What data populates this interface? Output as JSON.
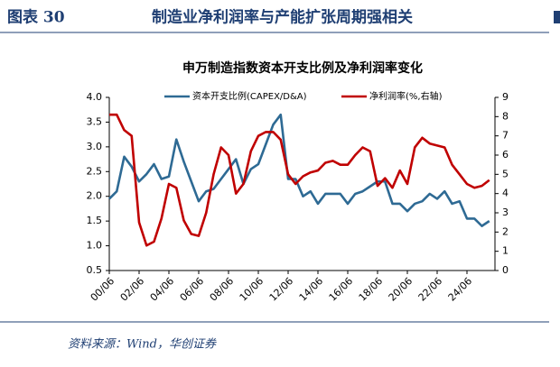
{
  "header": {
    "label": "图表 30",
    "title": "制造业净利润率与产能扩张周期强相关"
  },
  "source": "资料来源：Wind，华创证券",
  "chart_data": {
    "type": "line",
    "title": "申万制造指数资本开支比例及净利润率变化",
    "categories": [
      "00/06",
      null,
      null,
      null,
      "02/06",
      null,
      null,
      null,
      "04/06",
      null,
      null,
      null,
      "06/06",
      null,
      null,
      null,
      "08/06",
      null,
      null,
      null,
      "10/06",
      null,
      null,
      null,
      "12/06",
      null,
      null,
      null,
      "14/06",
      null,
      null,
      null,
      "16/06",
      null,
      null,
      null,
      "18/06",
      null,
      null,
      null,
      "20/06",
      null,
      null,
      null,
      "22/06",
      null,
      null,
      null,
      "24/06",
      null,
      null,
      null
    ],
    "series": [
      {
        "name": "资本开支比例(CAPEX/D&A)",
        "color": "#2e6a94",
        "axis": "y",
        "values": [
          1.95,
          2.1,
          2.8,
          2.6,
          2.3,
          2.45,
          2.65,
          2.35,
          2.4,
          3.15,
          2.7,
          2.3,
          1.9,
          2.1,
          2.15,
          2.35,
          2.55,
          2.75,
          2.25,
          2.55,
          2.65,
          3.05,
          3.45,
          3.65,
          2.35,
          2.35,
          2.0,
          2.1,
          1.85,
          2.05,
          2.05,
          2.05,
          1.85,
          2.05,
          2.1,
          2.2,
          2.3,
          2.3,
          1.85,
          1.85,
          1.7,
          1.85,
          1.9,
          2.05,
          1.95,
          2.1,
          1.85,
          1.9,
          1.55,
          1.55,
          1.4,
          1.5
        ]
      },
      {
        "name": "净利润率(%,右轴)",
        "color": "#c00000",
        "axis": "y2",
        "values": [
          8.1,
          8.1,
          7.3,
          7.0,
          2.5,
          1.3,
          1.5,
          2.7,
          4.5,
          4.3,
          2.6,
          1.9,
          1.8,
          3.0,
          5.0,
          6.4,
          6.0,
          4.0,
          4.5,
          6.2,
          7.0,
          7.2,
          7.2,
          6.8,
          5.0,
          4.5,
          4.9,
          5.1,
          5.2,
          5.6,
          5.7,
          5.5,
          5.5,
          6.0,
          6.4,
          6.2,
          4.4,
          4.8,
          4.3,
          5.2,
          4.5,
          6.4,
          6.9,
          6.6,
          6.5,
          6.4,
          5.5,
          5.0,
          4.5,
          4.3,
          4.4,
          4.7
        ]
      }
    ],
    "ylim": [
      0.5,
      4.0
    ],
    "yticks": [
      {
        "value": 0.5,
        "label": "0.5"
      },
      {
        "value": 1,
        "label": "1.0"
      },
      {
        "value": 1.5,
        "label": "1.5"
      },
      {
        "value": 2,
        "label": "2.0"
      },
      {
        "value": 2.5,
        "label": "2.5"
      },
      {
        "value": 3,
        "label": "3.0"
      },
      {
        "value": 3.5,
        "label": "3.5"
      },
      {
        "value": 4,
        "label": "4.0"
      }
    ],
    "y2lim": [
      0,
      9
    ],
    "y2ticks": [
      0,
      1,
      2,
      3,
      4,
      5,
      6,
      7,
      8,
      9
    ],
    "legend": "top"
  }
}
